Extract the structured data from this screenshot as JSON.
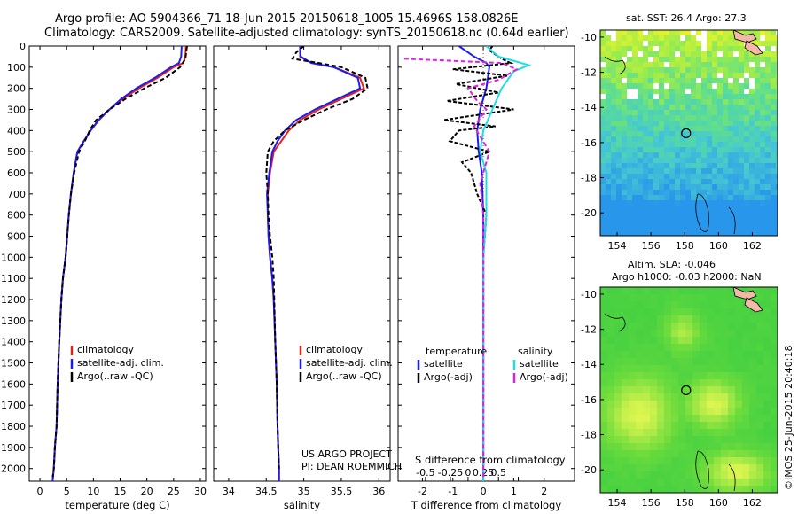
{
  "header": {
    "line1": "Argo profile: AO 5904366_71 18-Jun-2015 20150618_1005 15.4696S 158.0826E",
    "line2": "Climatology: CARS2009. Satellite-adjusted climatology: synTS_20150618.nc (0.64d earlier)"
  },
  "credit": {
    "project": "US ARGO PROJECT",
    "pi": "PI: DEAN ROEMMICH",
    "stamp": "©IMOS 25-Jun-2015 20:40:18"
  },
  "colors": {
    "climatology": "#e8201c",
    "satellite": "#1c1cf0",
    "argo": "#000000",
    "sal_satellite": "#22dde0",
    "sal_argo": "#e020e0"
  },
  "chart_data": [
    {
      "type": "line",
      "id": "temperature",
      "xlabel": "temperature (deg C)",
      "xlim": [
        -2,
        31
      ],
      "ylim": [
        0,
        2060
      ],
      "xticks": [
        0,
        5,
        10,
        15,
        20,
        25,
        30
      ],
      "xtick_labels": [
        "0",
        "5",
        "10",
        "15",
        "20",
        "25",
        "30"
      ],
      "yticks": [
        0,
        100,
        200,
        300,
        400,
        500,
        600,
        700,
        800,
        900,
        1000,
        1100,
        1200,
        1300,
        1400,
        1500,
        1600,
        1700,
        1800,
        1900,
        2000
      ],
      "ytick_labels": [
        "0",
        "100",
        "200",
        "300",
        "400",
        "500",
        "600",
        "700",
        "800",
        "900",
        "1000",
        "1100",
        "1200",
        "1300",
        "1400",
        "1500",
        "1600",
        "1700",
        "1800",
        "1900",
        "2000"
      ],
      "legend": [
        "climatology",
        "satellite-adj. clim.",
        "Argo(..raw -QC)"
      ],
      "series": [
        {
          "name": "climatology",
          "color": "#e8201c",
          "dash": "",
          "x": [
            27.3,
            27.2,
            26.8,
            25.0,
            22.0,
            18.5,
            15.5,
            13.0,
            11.0,
            9.5,
            8.2,
            7.0,
            6.3,
            5.8,
            5.4,
            5.1,
            4.8,
            4.3,
            4.0,
            3.6,
            3.3,
            3.1,
            2.8,
            2.6,
            2.4,
            2.4
          ],
          "y": [
            0,
            50,
            80,
            100,
            150,
            200,
            250,
            300,
            350,
            400,
            450,
            500,
            600,
            700,
            800,
            900,
            1000,
            1100,
            1200,
            1400,
            1600,
            1800,
            1900,
            2000,
            2050,
            2060
          ]
        },
        {
          "name": "satellite-adj. clim.",
          "color": "#1c1cf0",
          "dash": "",
          "x": [
            26.5,
            26.4,
            26.0,
            24.5,
            21.5,
            18.0,
            15.2,
            13.0,
            11.0,
            9.5,
            8.2,
            7.0,
            6.3,
            5.8,
            5.4,
            5.1,
            4.8,
            4.3,
            4.0,
            3.6,
            3.3,
            3.1,
            2.8,
            2.6,
            2.4,
            2.4
          ],
          "y": [
            0,
            50,
            80,
            100,
            150,
            200,
            250,
            300,
            350,
            400,
            450,
            500,
            600,
            700,
            800,
            900,
            1000,
            1100,
            1200,
            1400,
            1600,
            1800,
            1900,
            2000,
            2050,
            2060
          ]
        },
        {
          "name": "Argo(..raw -QC)",
          "color": "#000000",
          "dash": "5,3",
          "x": [
            27.5,
            27.4,
            27.2,
            26.2,
            23.5,
            19.5,
            16.0,
            13.0,
            10.5,
            9.3,
            8.4,
            7.3,
            6.4,
            5.8,
            5.4,
            5.1,
            4.8,
            4.3,
            4.0,
            3.6,
            3.3,
            3.1,
            2.8,
            2.6,
            2.4
          ],
          "y": [
            0,
            20,
            60,
            100,
            150,
            200,
            250,
            300,
            350,
            400,
            450,
            500,
            600,
            700,
            800,
            900,
            1000,
            1100,
            1200,
            1400,
            1600,
            1800,
            1900,
            2000,
            2040
          ]
        }
      ]
    },
    {
      "type": "line",
      "id": "salinity",
      "xlabel": "salinity",
      "xlim": [
        33.8,
        36.15
      ],
      "ylim": [
        0,
        2060
      ],
      "xticks": [
        34,
        34.5,
        35,
        35.5,
        36
      ],
      "xtick_labels": [
        "34",
        "34.5",
        "35",
        "35.5",
        "36"
      ],
      "legend": [
        "climatology",
        "satellite-adj. clim.",
        "Argo(..raw -QC)"
      ],
      "series": [
        {
          "name": "climatology",
          "color": "#e8201c",
          "dash": "",
          "x": [
            34.95,
            34.95,
            35.1,
            35.4,
            35.75,
            35.8,
            35.5,
            35.2,
            34.95,
            34.8,
            34.7,
            34.6,
            34.55,
            34.52,
            34.52,
            34.53,
            34.55,
            34.58,
            34.6,
            34.62,
            34.64,
            34.65,
            34.66,
            34.67,
            34.67
          ],
          "y": [
            0,
            50,
            80,
            100,
            150,
            200,
            250,
            300,
            350,
            400,
            450,
            500,
            600,
            700,
            800,
            900,
            1000,
            1100,
            1200,
            1400,
            1600,
            1800,
            1900,
            2000,
            2060
          ]
        },
        {
          "name": "satellite-adj. clim.",
          "color": "#1c1cf0",
          "dash": "",
          "x": [
            34.95,
            34.96,
            35.1,
            35.4,
            35.72,
            35.75,
            35.45,
            35.15,
            34.9,
            34.75,
            34.65,
            34.58,
            34.54,
            34.51,
            34.52,
            34.53,
            34.55,
            34.58,
            34.6,
            34.62,
            34.64,
            34.65,
            34.66,
            34.67,
            34.67
          ],
          "y": [
            0,
            50,
            80,
            100,
            150,
            200,
            250,
            300,
            350,
            400,
            450,
            500,
            600,
            700,
            800,
            900,
            1000,
            1100,
            1200,
            1400,
            1600,
            1800,
            1900,
            2000,
            2060
          ]
        },
        {
          "name": "Argo(..raw -QC)",
          "color": "#000000",
          "dash": "5,3",
          "x": [
            35.0,
            34.9,
            34.85,
            35.2,
            35.5,
            35.82,
            35.85,
            35.65,
            35.3,
            35.0,
            34.75,
            34.6,
            34.52,
            34.5,
            34.52,
            34.53,
            34.55,
            34.58,
            34.6,
            34.62,
            34.64,
            34.65,
            34.66,
            34.67
          ],
          "y": [
            0,
            30,
            60,
            80,
            100,
            150,
            200,
            250,
            300,
            350,
            400,
            450,
            500,
            600,
            700,
            800,
            900,
            1000,
            1100,
            1400,
            1600,
            1800,
            1900,
            2000
          ]
        }
      ]
    },
    {
      "type": "line",
      "id": "difference",
      "xlabel": "T difference from climatology",
      "xlabel_top": "S difference from climatology",
      "xlim": [
        -2.8,
        3.0
      ],
      "ylim": [
        0,
        2060
      ],
      "xticks": [
        -2,
        -1,
        0,
        1,
        2
      ],
      "xtick_labels": [
        "-2",
        "-1",
        "0",
        "1",
        "2"
      ],
      "sticks": [
        -1.9,
        -1.08,
        -0.5,
        0,
        0.5,
        1.15
      ],
      "stick_labels": [
        "-0.5",
        "-0.25",
        "0",
        "0.25",
        "0.5",
        ""
      ],
      "legend_groups": [
        "temperature",
        "salinity"
      ],
      "legend": [
        "satellite",
        "Argo(-adj)",
        "satellite",
        "Argo(-adj)"
      ],
      "series": [
        {
          "name": "T satellite",
          "color": "#1c1cf0",
          "dash": "",
          "x": [
            -0.8,
            -0.3,
            0.1,
            0.2,
            0.1,
            -0.1,
            -0.2,
            -0.15,
            -0.05,
            0.0,
            0.0,
            0.0,
            0.0,
            0.0,
            0.0
          ],
          "y": [
            0,
            50,
            80,
            100,
            200,
            300,
            400,
            500,
            600,
            800,
            1000,
            1200,
            1500,
            1800,
            2060
          ]
        },
        {
          "name": "T Argo(-adj)",
          "color": "#000000",
          "dash": "4,2",
          "x": [
            0.3,
            0.2,
            0.6,
            0.9,
            -1.0,
            0.8,
            -0.9,
            0.5,
            -1.2,
            1.0,
            -1.3,
            0.4,
            -0.8,
            -1.1,
            0.2,
            -0.7,
            -0.4,
            -0.2,
            0.1,
            0.0,
            0.0,
            0.0,
            0.0,
            0.0
          ],
          "y": [
            0,
            20,
            60,
            80,
            110,
            140,
            180,
            220,
            260,
            300,
            350,
            380,
            400,
            450,
            500,
            550,
            600,
            700,
            800,
            1000,
            1200,
            1500,
            1800,
            2040
          ]
        },
        {
          "name": "S satellite",
          "color": "#22dde0",
          "dash": "",
          "x": [
            0.1,
            0.5,
            1.5,
            1.0,
            0.6,
            0.3,
            0.0,
            -0.1,
            0.1,
            0.1,
            0.0,
            0.0,
            0.0,
            0.0,
            0.0
          ],
          "y": [
            0,
            50,
            90,
            120,
            200,
            300,
            400,
            500,
            600,
            800,
            1000,
            1200,
            1500,
            1800,
            2060
          ]
        },
        {
          "name": "S Argo(-adj)",
          "color": "#e020e0",
          "dash": "5,3",
          "x": [
            -2.6,
            -1.0,
            0.6,
            1.1,
            0.5,
            -0.5,
            -0.2,
            0.1,
            -0.3,
            0.2,
            -0.1,
            0.0,
            0.0,
            0.0,
            0.0
          ],
          "y": [
            60,
            70,
            80,
            110,
            160,
            200,
            260,
            300,
            380,
            500,
            650,
            800,
            1000,
            1500,
            2040
          ]
        }
      ]
    },
    {
      "type": "heatmap",
      "id": "sst-map",
      "title": "sat. SST: 26.4 Argo: 27.3",
      "xlim": [
        153,
        163.5
      ],
      "ylim": [
        -21.3,
        -9.6
      ],
      "xticks": [
        154,
        156,
        158,
        160,
        162
      ],
      "xtick_labels": [
        "154",
        "156",
        "158",
        "160",
        "162"
      ],
      "yticks": [
        -10,
        -12,
        -14,
        -16,
        -18,
        -20
      ],
      "ytick_labels": [
        "-10",
        "-12",
        "-14",
        "-16",
        "-18",
        "-20"
      ],
      "marker": [
        158.08,
        -15.47
      ]
    },
    {
      "type": "heatmap",
      "id": "sla-map",
      "title_line1": "Altim. SLA: -0.046",
      "title_line2": "Argo h1000: -0.03 h2000: NaN",
      "xlim": [
        153,
        163.5
      ],
      "ylim": [
        -21.3,
        -9.6
      ],
      "xticks": [
        154,
        156,
        158,
        160,
        162
      ],
      "xtick_labels": [
        "154",
        "156",
        "158",
        "160",
        "162"
      ],
      "yticks": [
        -10,
        -12,
        -14,
        -16,
        -18,
        -20
      ],
      "ytick_labels": [
        "-10",
        "-12",
        "-14",
        "-16",
        "-18",
        "-20"
      ],
      "marker": [
        158.08,
        -15.47
      ]
    }
  ]
}
